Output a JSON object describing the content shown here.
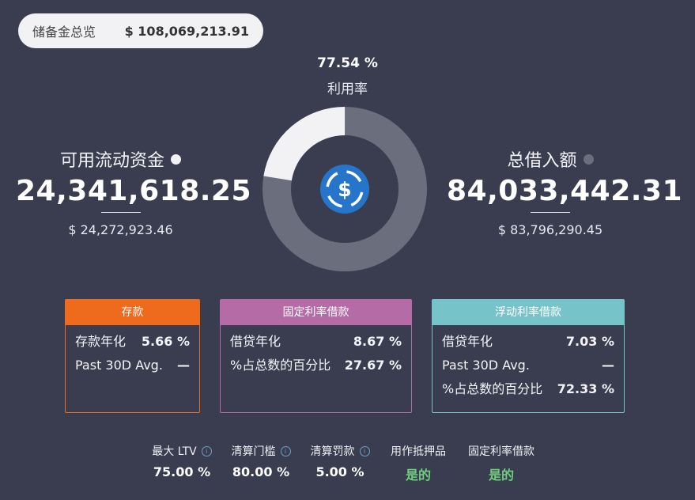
{
  "reserve_overview": {
    "label": "储备金总览",
    "value": "$ 108,069,213.91"
  },
  "utilization": {
    "percent": "77.54 %",
    "label": "利用率",
    "fraction": 0.7754
  },
  "available_liquidity": {
    "label": "可用流动资金",
    "amount": "24,341,618.25",
    "usd": "$ 24,272,923.46",
    "dot_color": "#f2f2f5"
  },
  "total_borrowed": {
    "label": "总借入额",
    "amount": "84,033,442.31",
    "usd": "$ 83,796,290.45",
    "dot_color": "#6b6e7c"
  },
  "colors": {
    "donut_used": "#6b6e7c",
    "donut_free": "#f2f2f5",
    "deposit": "#ee6a1c",
    "stable": "#b56ba6",
    "variable": "#76c3c9",
    "coin": "#2775ca"
  },
  "deposit_card": {
    "title": "存款",
    "rows": [
      {
        "label": "存款年化",
        "value": "5.66 %"
      },
      {
        "label": "Past 30D Avg.",
        "value": "—"
      }
    ]
  },
  "stable_card": {
    "title": "固定利率借款",
    "rows": [
      {
        "label": "借贷年化",
        "value": "8.67 %"
      },
      {
        "label": "%占总数的百分比",
        "value": "27.67 %"
      }
    ]
  },
  "variable_card": {
    "title": "浮动利率借款",
    "rows": [
      {
        "label": "借贷年化",
        "value": "7.03 %"
      },
      {
        "label": "Past 30D Avg.",
        "value": "—"
      },
      {
        "label": "%占总数的百分比",
        "value": "72.33 %"
      }
    ]
  },
  "stats": [
    {
      "label": "最大 LTV",
      "value": "75.00 %",
      "info": true
    },
    {
      "label": "清算门槛",
      "value": "80.00 %",
      "info": true
    },
    {
      "label": "清算罚款",
      "value": "5.00 %",
      "info": true
    },
    {
      "label": "用作抵押品",
      "value": "是的",
      "info": false
    },
    {
      "label": "固定利率借款",
      "value": "是的",
      "info": false
    }
  ],
  "coin_icon": "usdc-icon"
}
